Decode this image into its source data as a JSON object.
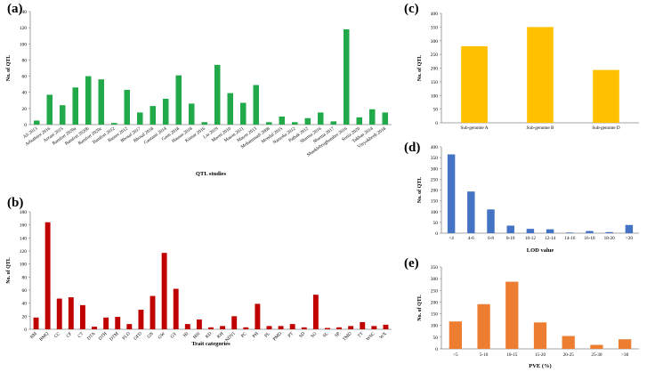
{
  "panel_labels": {
    "a": "(a)",
    "b": "(b)",
    "c": "(c)",
    "d": "(d)",
    "e": "(e)"
  },
  "colors": {
    "a": "#22aa4a",
    "b": "#c00000",
    "c": "#ffc000",
    "d": "#4472c4",
    "e": "#ed7d31"
  },
  "chart_data": [
    {
      "id": "a",
      "type": "bar",
      "title": "",
      "xlabel": "QTL studies",
      "ylabel": "No. of QTL",
      "ylim": [
        0,
        140
      ],
      "yticks": [
        0,
        20,
        40,
        60,
        80,
        100,
        120,
        140
      ],
      "grid": false,
      "categories": [
        "Ali 2013",
        "Arbuthnot 2016",
        "Arzani 2015",
        "Bamfort 2020a",
        "Bamfort 2020b",
        "Bamfort 2020c",
        "Bamfort 2012",
        "Basnet 2012",
        "Bhosal 2017",
        "Bhosal 2018",
        "Gautami 2014",
        "Gaun 2018",
        "Hassan 2018",
        "Kumar 2016",
        "Lin 2019",
        "Maoni 2010",
        "Mason 2011",
        "Mason 2013",
        "Mohammadi 2008",
        "Mondal 2015",
        "Naruoka 2012",
        "Pathak 2012",
        "Sharma 2016",
        "Sharma 2017",
        "Shanklebrughumber 2016",
        "Sonia 2020",
        "Takhan 2014",
        "Vitryokbenh 2018"
      ],
      "values": [
        5,
        37,
        24,
        46,
        60,
        56,
        2,
        43,
        15,
        23,
        32,
        61,
        26,
        3,
        74,
        39,
        27,
        49,
        3,
        10,
        3,
        8,
        15,
        4,
        118,
        9,
        19,
        15
      ]
    },
    {
      "id": "b",
      "type": "bar",
      "title": "",
      "xlabel": "Trait categories",
      "ylabel": "No. of QTL",
      "ylim": [
        0,
        180
      ],
      "yticks": [
        0,
        20,
        40,
        60,
        80,
        100,
        120,
        140,
        160,
        180
      ],
      "grid": false,
      "categories": [
        "BM",
        "BMQ",
        "CC",
        "CF",
        "CT",
        "DTA",
        "DTH",
        "DTM",
        "FLD",
        "GFD",
        "GN",
        "GW",
        "GY",
        "HI",
        "HSI",
        "KD",
        "KH",
        "NDVI",
        "PC",
        "PH",
        "PL",
        "PMD",
        "PT",
        "SD",
        "SG",
        "SL",
        "SP",
        "TMD",
        "TT",
        "WSC",
        "WX"
      ],
      "values": [
        18,
        164,
        47,
        49,
        37,
        4,
        18,
        19,
        8,
        30,
        51,
        117,
        62,
        8,
        15,
        3,
        5,
        20,
        3,
        39,
        5,
        5,
        8,
        3,
        53,
        2,
        3,
        5,
        11,
        5,
        7
      ]
    },
    {
      "id": "c",
      "type": "bar",
      "title": "",
      "xlabel": "",
      "ylabel": "No. of QTL",
      "ylim": [
        0,
        400
      ],
      "yticks": [
        0,
        50,
        100,
        150,
        200,
        250,
        300,
        350,
        400
      ],
      "grid": false,
      "categories": [
        "Sub-genome A",
        "Sub-genome B",
        "Sub-genome D"
      ],
      "values": [
        280,
        350,
        193
      ]
    },
    {
      "id": "d",
      "type": "bar",
      "title": "",
      "xlabel": "LOD value",
      "ylabel": "No. of QTL",
      "ylim": [
        0,
        400
      ],
      "yticks": [
        0,
        50,
        100,
        150,
        200,
        250,
        300,
        350,
        400
      ],
      "grid": false,
      "categories": [
        "<4",
        "4-6",
        "6-8",
        "8-10",
        "10-12",
        "12-14",
        "14-16",
        "16-18",
        "18-20",
        ">20"
      ],
      "values": [
        365,
        193,
        110,
        35,
        20,
        18,
        3,
        10,
        5,
        38
      ]
    },
    {
      "id": "e",
      "type": "bar",
      "title": "",
      "xlabel": "PVE (%)",
      "ylabel": "No. of QTL",
      "ylim": [
        0,
        350
      ],
      "yticks": [
        0,
        50,
        100,
        150,
        200,
        250,
        300,
        350
      ],
      "grid": false,
      "categories": [
        "<5",
        "5-10",
        "10-15",
        "15-20",
        "20-25",
        "25-30",
        ">30"
      ],
      "values": [
        117,
        191,
        287,
        113,
        55,
        17,
        41
      ]
    }
  ]
}
